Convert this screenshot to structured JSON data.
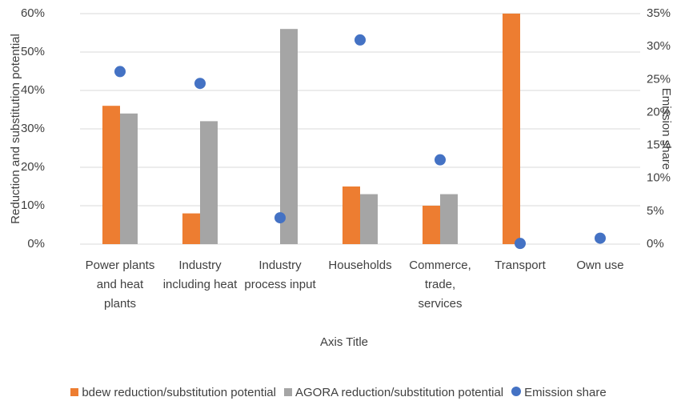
{
  "chart_data": {
    "type": "bar",
    "categories": [
      "Power plants and heat plants",
      "Industry including heat",
      "Industry process input",
      "Households",
      "Commerce, trade, services",
      "Transport",
      "Own use"
    ],
    "series": [
      {
        "name": "bdew reduction/substitution potential",
        "color": "#ed7d31",
        "values": [
          36,
          8,
          null,
          15,
          10,
          60,
          null
        ]
      },
      {
        "name": "AGORA reduction/substitution potential",
        "color": "#a5a5a5",
        "values": [
          34,
          32,
          56,
          13,
          13,
          null,
          null
        ]
      },
      {
        "name": "Emission share",
        "color": "#4472c4",
        "type": "scatter",
        "axis": "y2",
        "values": [
          26.2,
          24.4,
          4.0,
          31.0,
          12.8,
          0.1,
          0.9
        ]
      }
    ],
    "ylim": [
      0,
      60
    ],
    "yticks": [
      {
        "value": 0,
        "label": "0%"
      },
      {
        "value": 10,
        "label": "10%"
      },
      {
        "value": 20,
        "label": "20%"
      },
      {
        "value": 30,
        "label": "30%"
      },
      {
        "value": 40,
        "label": "40%"
      },
      {
        "value": 50,
        "label": "50%"
      },
      {
        "value": 60,
        "label": "60%"
      }
    ],
    "y2lim": [
      0,
      35
    ],
    "y2ticks": [
      {
        "value": 0,
        "label": "0%"
      },
      {
        "value": 5,
        "label": "5%"
      },
      {
        "value": 10,
        "label": "10%"
      },
      {
        "value": 15,
        "label": "15%"
      },
      {
        "value": 20,
        "label": "20%"
      },
      {
        "value": 25,
        "label": "25%"
      },
      {
        "value": 30,
        "label": "30%"
      },
      {
        "value": 35,
        "label": "35%"
      }
    ],
    "y_label": "Reduction and substitution potential",
    "y2_label": "Emission share",
    "x_label": "Axis Title",
    "grid": true,
    "legend": "bottom"
  }
}
